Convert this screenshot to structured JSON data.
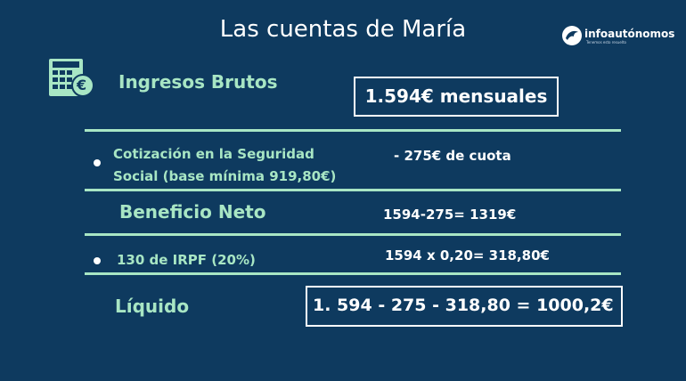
{
  "title": "Las cuentas de María",
  "brand": {
    "name_part1": "info",
    "name_part2": "autónomos",
    "tagline": "Tenemos esto resuelto"
  },
  "icons": {
    "calculator": "calculator-euro-icon",
    "brand_logo": "dolphin-logo-icon",
    "euro_symbol": "€"
  },
  "rows": {
    "ingresos": {
      "label": "Ingresos Brutos",
      "value": "1.594€ mensuales"
    },
    "cotizacion": {
      "label_line1": "Cotización en la Seguridad",
      "label_line2": "Social (base mínima 919,80€)",
      "value": "- 275€ de cuota"
    },
    "beneficio": {
      "label": "Beneficio Neto",
      "value": "1594-275= 1319€"
    },
    "irpf": {
      "label": "130 de IRPF (20%)",
      "value": "1594 x 0,20= 318,80€"
    },
    "liquido": {
      "label": "Líquido",
      "value": "1. 594 - 275 - 318,80 = 1000,2€"
    }
  },
  "colors": {
    "background": "#0e3a5f",
    "accent_green": "#a8e6c4",
    "text_white": "#ffffff"
  }
}
